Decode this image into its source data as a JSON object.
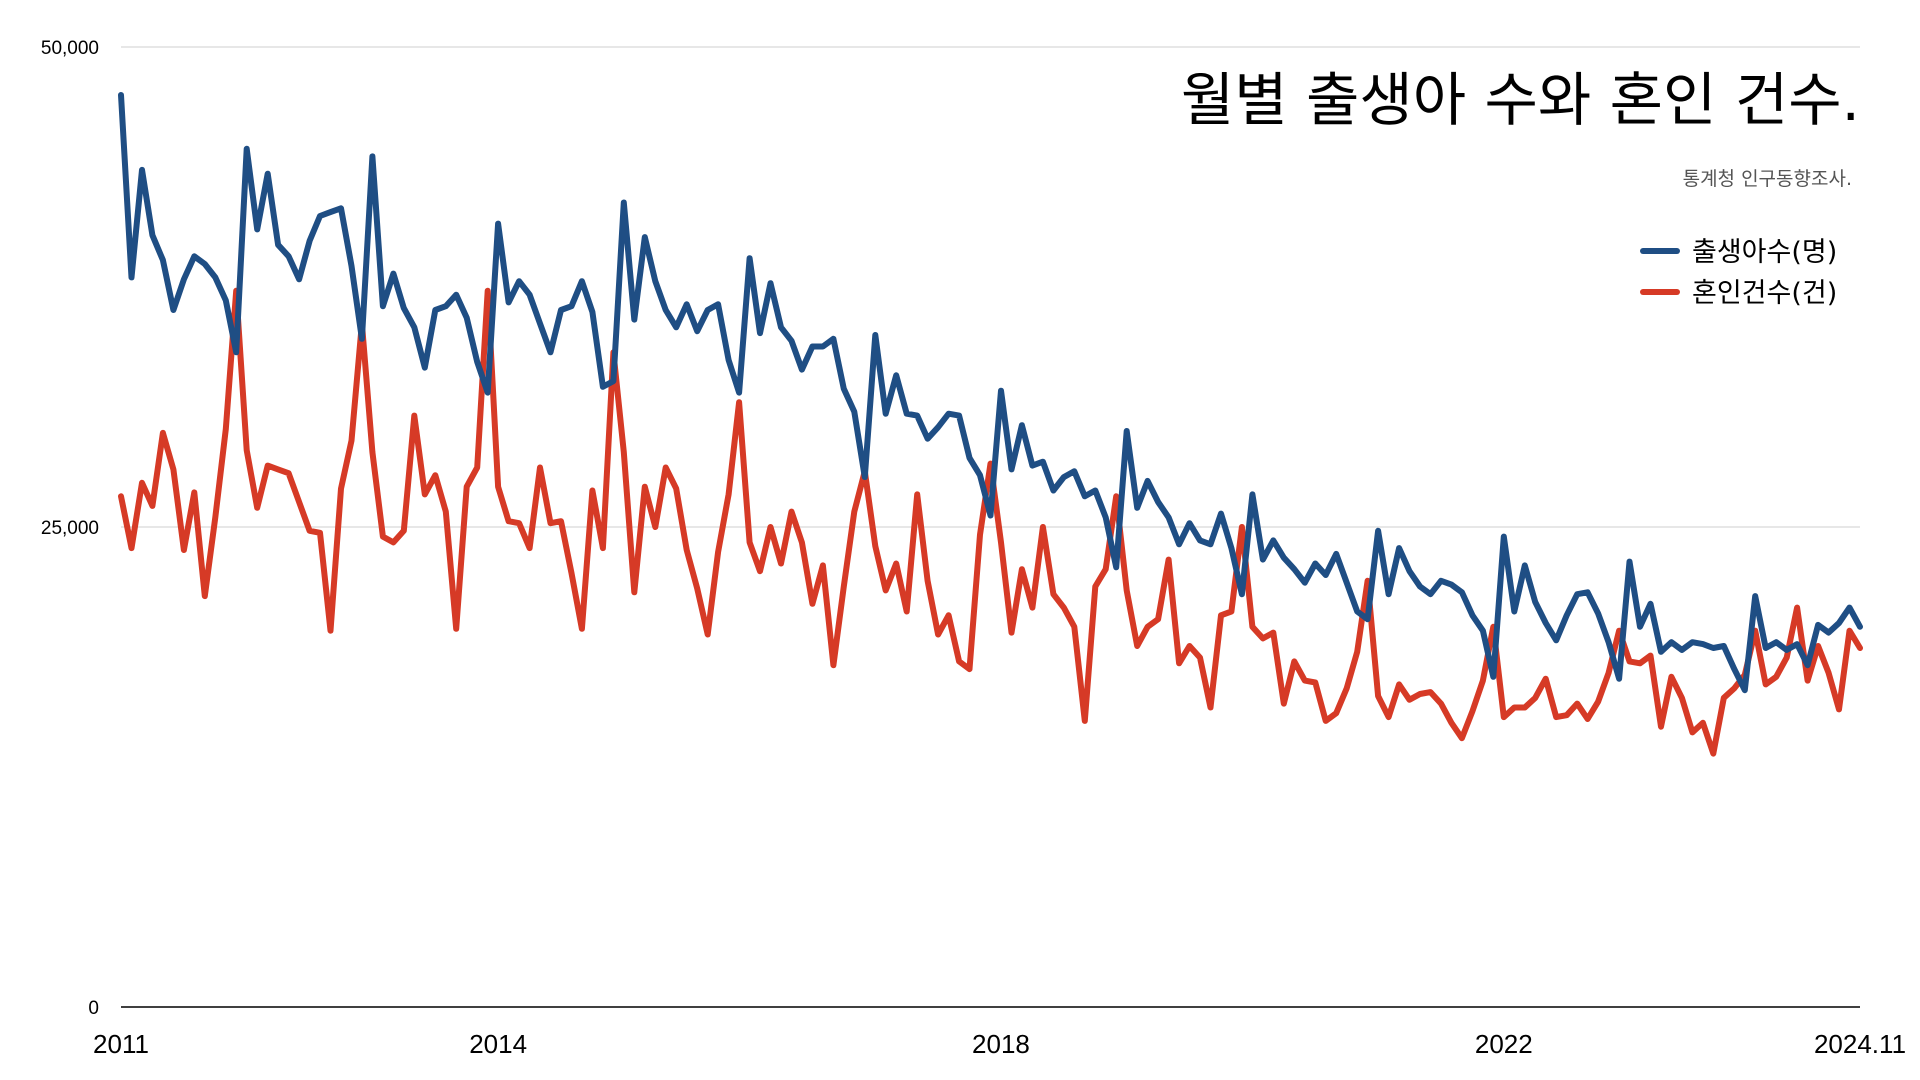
{
  "chart_data": {
    "type": "line",
    "title": "월별 출생아 수와 혼인 건수.",
    "subtitle": "통계청 인구동향조사.",
    "x_start": "2011-01",
    "x_end": "2024-11",
    "x_tick_labels": [
      "2011",
      "2014",
      "2018",
      "2022",
      "2024.11"
    ],
    "x_tick_months": [
      "2011-01",
      "2014-01",
      "2018-01",
      "2022-01",
      "2024-11"
    ],
    "y_tick_labels": [
      "50,000",
      "25,000",
      "0"
    ],
    "y_tick_values": [
      50000,
      25000,
      0
    ],
    "ylim": [
      0,
      50000
    ],
    "grid": true,
    "legend_position": "top-right",
    "series": [
      {
        "name": "출생아수(명)",
        "color": "#1f4e84",
        "values": [
          47500,
          38000,
          43600,
          40200,
          38900,
          36300,
          37900,
          39100,
          38700,
          38000,
          36800,
          34100,
          44700,
          40500,
          43400,
          39700,
          39100,
          37900,
          39900,
          41200,
          41400,
          41600,
          38600,
          34800,
          44300,
          36500,
          38200,
          36400,
          35400,
          33300,
          36300,
          36500,
          37100,
          35900,
          33600,
          32000,
          40800,
          36700,
          37800,
          37100,
          35600,
          34100,
          36300,
          36500,
          37800,
          36200,
          32300,
          32600,
          41900,
          35800,
          40100,
          37800,
          36300,
          35400,
          36600,
          35200,
          36300,
          36600,
          33700,
          32000,
          39000,
          35100,
          37700,
          35400,
          34700,
          33200,
          34400,
          34400,
          34800,
          32200,
          31000,
          27600,
          35000,
          30900,
          32900,
          30900,
          30800,
          29600,
          30200,
          30900,
          30800,
          28600,
          27700,
          25600,
          32100,
          28000,
          30300,
          28200,
          28400,
          26900,
          27600,
          27900,
          26600,
          26900,
          25500,
          22900,
          30000,
          26000,
          27400,
          26300,
          25500,
          24100,
          25200,
          24300,
          24100,
          25700,
          23900,
          21500,
          26700,
          23300,
          24300,
          23400,
          22800,
          22100,
          23100,
          22500,
          23600,
          22100,
          20600,
          20200,
          24800,
          21500,
          23900,
          22700,
          21900,
          21500,
          22200,
          22000,
          21600,
          20400,
          19600,
          17200,
          24500,
          20600,
          23000,
          21100,
          20000,
          19100,
          20400,
          21500,
          21600,
          20500,
          19000,
          17100,
          23200,
          19800,
          21000,
          18500,
          19000,
          18600,
          19000,
          18900,
          18700,
          18800,
          17600,
          16500,
          21400,
          18700,
          19000,
          18600,
          18900,
          17800,
          19900,
          19500,
          20000,
          20800,
          19800
        ]
      },
      {
        "name": "혼인건수(건)",
        "color": "#d63a26",
        "values": [
          26600,
          23900,
          27300,
          26100,
          29900,
          28000,
          23800,
          26800,
          21400,
          25500,
          30100,
          37300,
          29000,
          26000,
          28200,
          28000,
          27800,
          26300,
          24800,
          24700,
          19600,
          27000,
          29500,
          35600,
          28900,
          24500,
          24200,
          24800,
          30800,
          26700,
          27700,
          25800,
          19700,
          27100,
          28100,
          37300,
          27100,
          25300,
          25200,
          23900,
          28100,
          25200,
          25300,
          22600,
          19700,
          26900,
          23900,
          34100,
          28900,
          21600,
          27100,
          25000,
          28100,
          27000,
          23800,
          21800,
          19400,
          23700,
          26700,
          31500,
          24200,
          22700,
          25000,
          23100,
          25800,
          24200,
          21000,
          23000,
          17800,
          21900,
          25800,
          27900,
          24000,
          21700,
          23100,
          20600,
          26700,
          22200,
          19400,
          20400,
          18000,
          17600,
          24600,
          28300,
          24200,
          19500,
          22800,
          20800,
          25000,
          21500,
          20800,
          19800,
          14900,
          21900,
          22800,
          26600,
          21700,
          18800,
          19800,
          20200,
          23300,
          17900,
          18800,
          18200,
          15600,
          20400,
          20600,
          25000,
          19800,
          19200,
          19500,
          15800,
          18000,
          17000,
          16900,
          14900,
          15300,
          16600,
          18500,
          22200,
          16200,
          15100,
          16800,
          16000,
          16300,
          16400,
          15800,
          14800,
          14000,
          15400,
          17000,
          19800,
          15100,
          15600,
          15600,
          16100,
          17100,
          15100,
          15200,
          15800,
          15000,
          15900,
          17400,
          19600,
          18000,
          17900,
          18300,
          14600,
          17200,
          16100,
          14300,
          14800,
          13200,
          16100,
          16600,
          17300,
          19600,
          16800,
          17200,
          18200,
          20800,
          17000,
          18800,
          17400,
          15500,
          19600,
          18700
        ]
      }
    ]
  }
}
